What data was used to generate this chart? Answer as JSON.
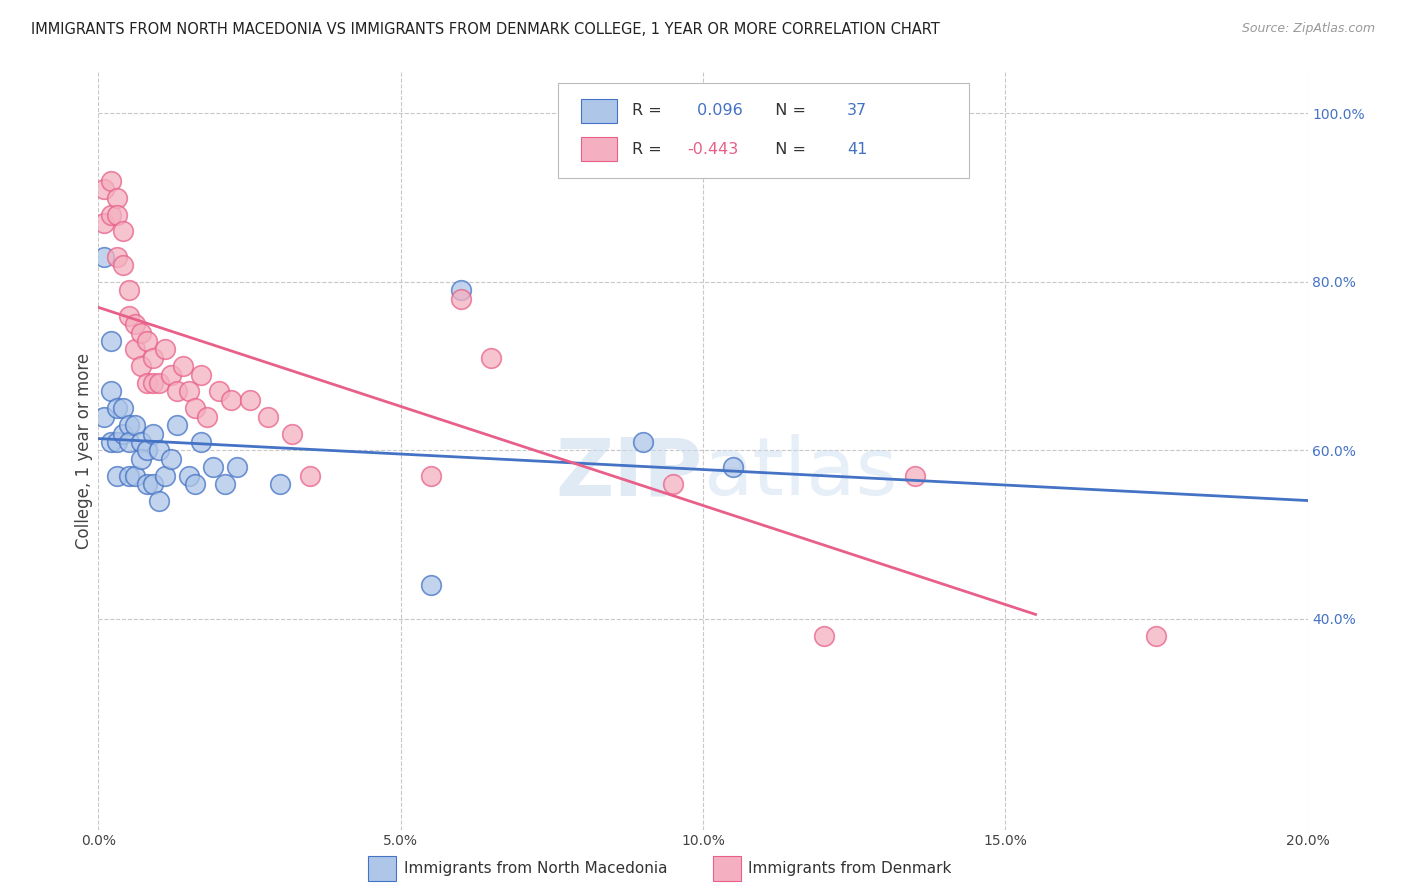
{
  "title": "IMMIGRANTS FROM NORTH MACEDONIA VS IMMIGRANTS FROM DENMARK COLLEGE, 1 YEAR OR MORE CORRELATION CHART",
  "source": "Source: ZipAtlas.com",
  "ylabel": "College, 1 year or more",
  "x_min": 0.0,
  "x_max": 0.2,
  "y_min": 0.15,
  "y_max": 1.05,
  "x_ticks": [
    0.0,
    0.05,
    0.1,
    0.15,
    0.2
  ],
  "x_tick_labels": [
    "0.0%",
    "5.0%",
    "10.0%",
    "15.0%",
    "20.0%"
  ],
  "y_ticks_right": [
    0.4,
    0.6,
    0.8,
    1.0
  ],
  "y_tick_labels_right": [
    "40.0%",
    "60.0%",
    "80.0%",
    "100.0%"
  ],
  "blue_R": 0.096,
  "blue_N": 37,
  "pink_R": -0.443,
  "pink_N": 41,
  "blue_color": "#aec6e8",
  "pink_color": "#f4b0c0",
  "blue_line_color": "#4472c4",
  "pink_line_color": "#e8608a",
  "blue_scatter_x": [
    0.001,
    0.001,
    0.002,
    0.002,
    0.002,
    0.003,
    0.003,
    0.003,
    0.004,
    0.004,
    0.005,
    0.005,
    0.005,
    0.006,
    0.006,
    0.007,
    0.007,
    0.008,
    0.008,
    0.009,
    0.009,
    0.01,
    0.01,
    0.011,
    0.012,
    0.013,
    0.015,
    0.016,
    0.017,
    0.019,
    0.021,
    0.023,
    0.03,
    0.055,
    0.06,
    0.09,
    0.105
  ],
  "blue_scatter_y": [
    0.83,
    0.64,
    0.73,
    0.67,
    0.61,
    0.65,
    0.61,
    0.57,
    0.65,
    0.62,
    0.63,
    0.61,
    0.57,
    0.63,
    0.57,
    0.61,
    0.59,
    0.56,
    0.6,
    0.62,
    0.56,
    0.6,
    0.54,
    0.57,
    0.59,
    0.63,
    0.57,
    0.56,
    0.61,
    0.58,
    0.56,
    0.58,
    0.56,
    0.44,
    0.79,
    0.61,
    0.58
  ],
  "pink_scatter_x": [
    0.001,
    0.001,
    0.002,
    0.002,
    0.003,
    0.003,
    0.003,
    0.004,
    0.004,
    0.005,
    0.005,
    0.006,
    0.006,
    0.007,
    0.007,
    0.008,
    0.008,
    0.009,
    0.009,
    0.01,
    0.011,
    0.012,
    0.013,
    0.014,
    0.015,
    0.016,
    0.017,
    0.018,
    0.02,
    0.022,
    0.025,
    0.028,
    0.032,
    0.035,
    0.055,
    0.06,
    0.065,
    0.095,
    0.12,
    0.135,
    0.175
  ],
  "pink_scatter_y": [
    0.91,
    0.87,
    0.92,
    0.88,
    0.9,
    0.88,
    0.83,
    0.86,
    0.82,
    0.79,
    0.76,
    0.75,
    0.72,
    0.74,
    0.7,
    0.73,
    0.68,
    0.71,
    0.68,
    0.68,
    0.72,
    0.69,
    0.67,
    0.7,
    0.67,
    0.65,
    0.69,
    0.64,
    0.67,
    0.66,
    0.66,
    0.64,
    0.62,
    0.57,
    0.57,
    0.78,
    0.71,
    0.56,
    0.38,
    0.57,
    0.38
  ],
  "grid_color": "#c8c8c8",
  "background_color": "#ffffff",
  "watermark_text": "ZIPatlas",
  "legend_dark_color": "#333333",
  "legend_value_color": "#4472c4",
  "legend_pink_value_color": "#e8608a"
}
